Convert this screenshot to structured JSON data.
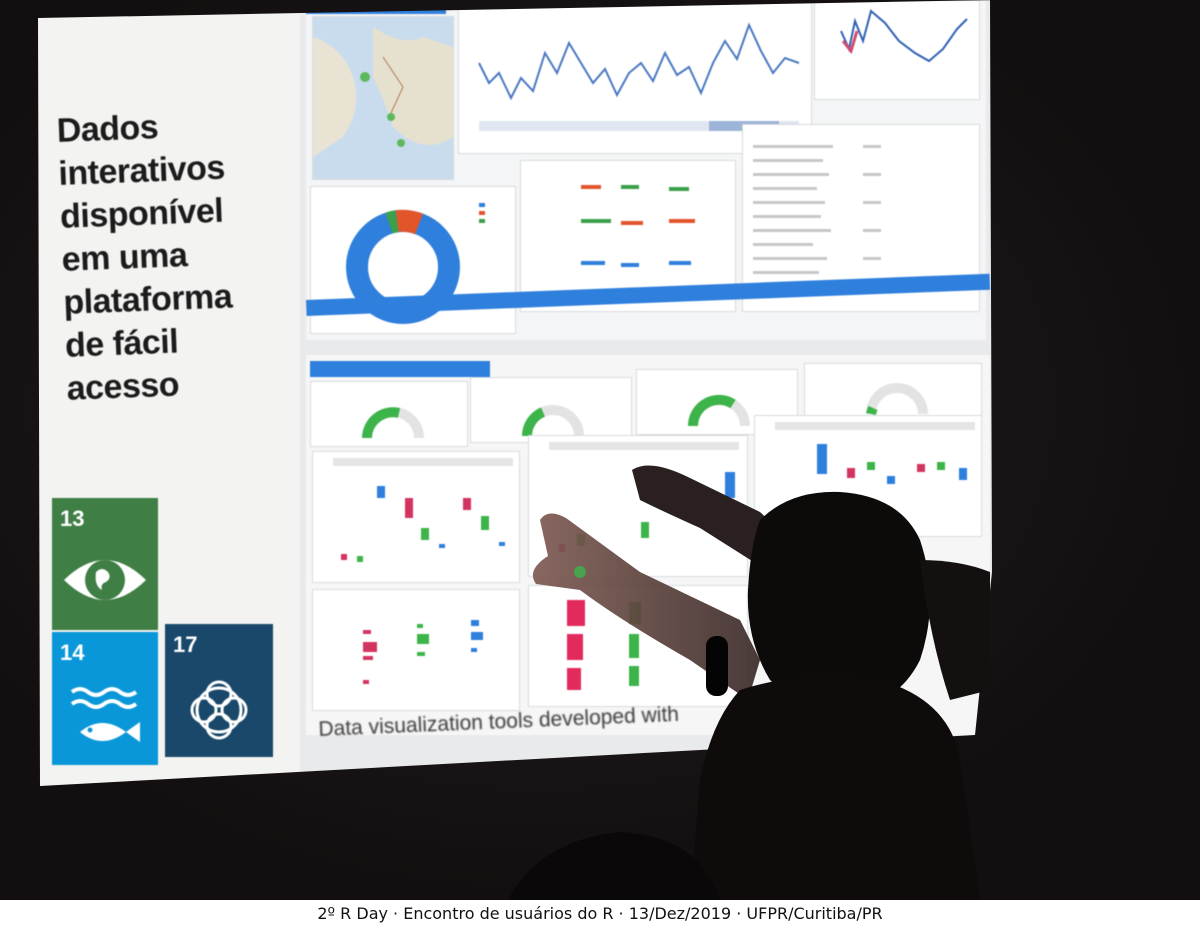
{
  "slide": {
    "headline_lines": [
      "Dados",
      "interativos",
      "disponível",
      "em uma",
      "plataforma",
      "de fácil",
      "acesso"
    ],
    "caption": "Data visualization tools developed with",
    "sdg_tiles": [
      {
        "number": "13",
        "icon": "eye-earth-icon",
        "color": "#3f7e44"
      },
      {
        "number": "14",
        "icon": "fish-waves-icon",
        "color": "#0a97d9"
      },
      {
        "number": "17",
        "icon": "rings-icon",
        "color": "#19486a"
      }
    ]
  },
  "footer": {
    "text": "2º R Day · Encontro de usuários do R · 13/Dez/2019 · UFPR/Curitiba/PR"
  }
}
